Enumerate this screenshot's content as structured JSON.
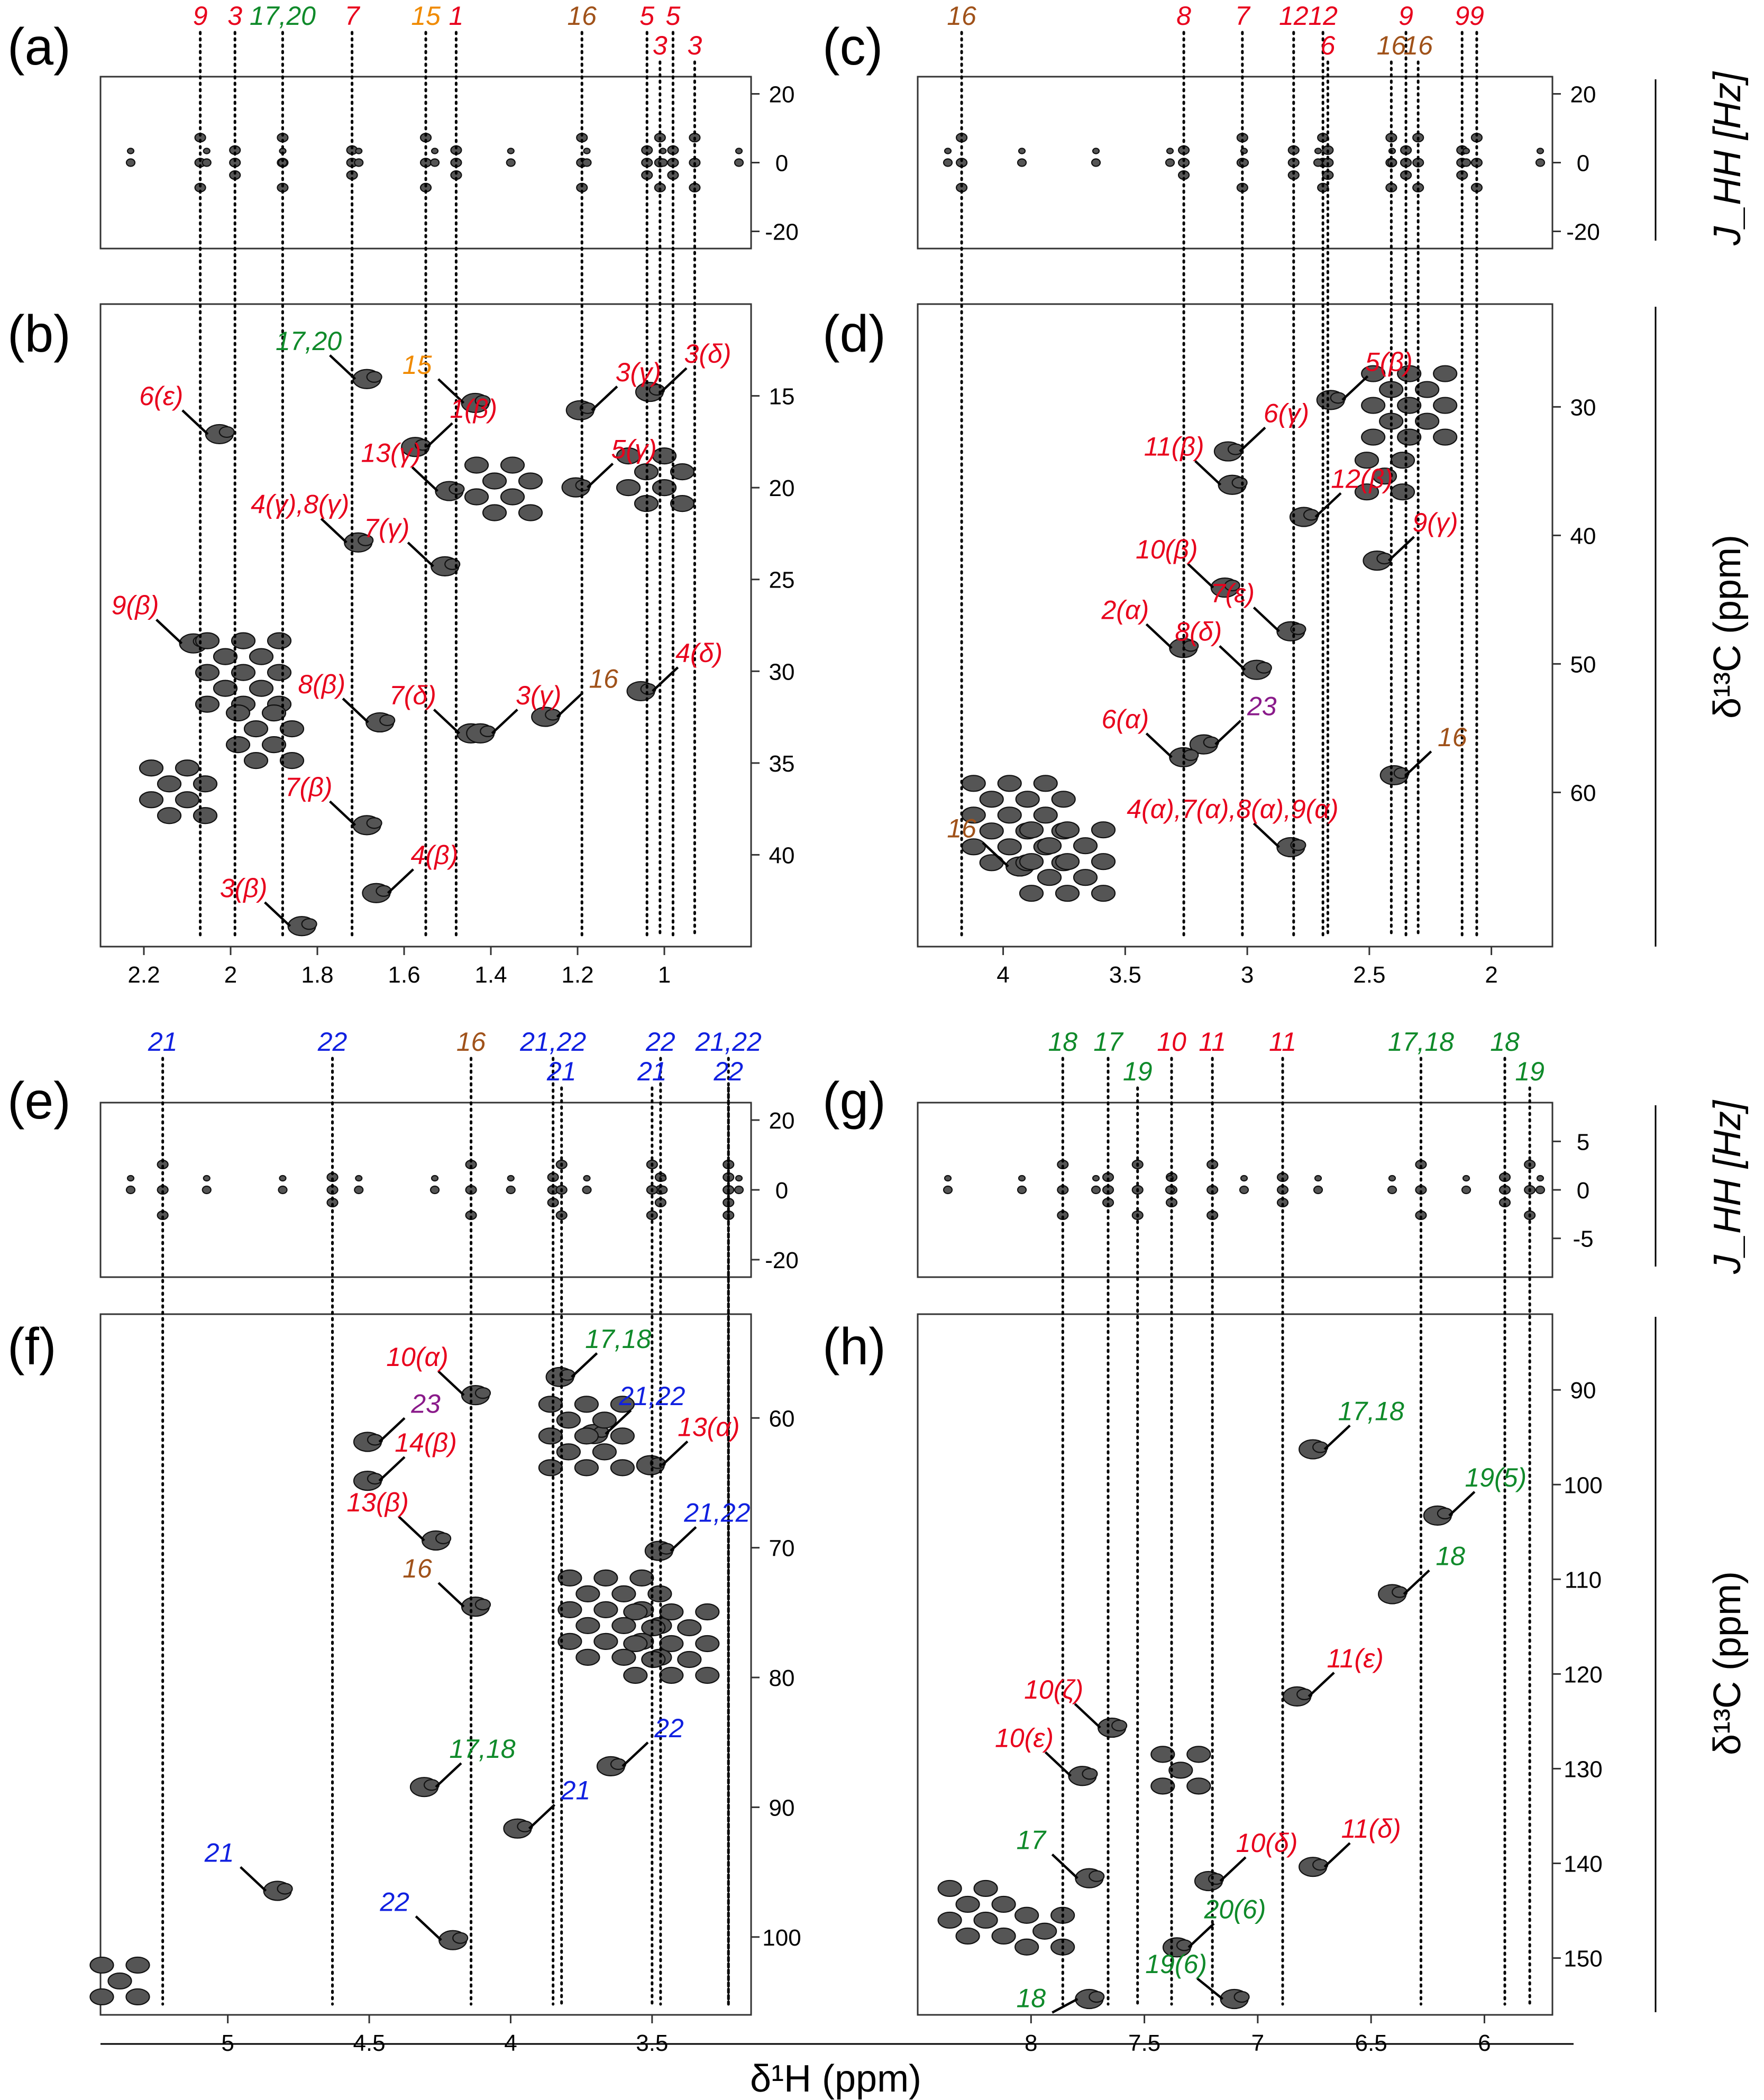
{
  "figure": {
    "bottom_xlabel": "δ¹H (ppm)",
    "right_ylabel_j": "J_HH [Hz]",
    "right_ylabel_c": "δ¹³C (ppm)"
  },
  "colors": {
    "red": "#e8001c",
    "green": "#0f8a2a",
    "blue": "#1020e0",
    "orange": "#f08a00",
    "brown": "#a0521a",
    "purple": "#8a1a8a"
  },
  "chart_data": [
    {
      "panel": "a",
      "type": "scatter",
      "x_scale": "reversed",
      "xlim": [
        2.3,
        0.8
      ],
      "ylim": [
        25,
        -25
      ],
      "yticks": [
        -20,
        0,
        20
      ],
      "peak_labels": [
        {
          "text": "9",
          "x": 2.07,
          "color": "red"
        },
        {
          "text": "3",
          "x": 1.99,
          "color": "red"
        },
        {
          "text": "17,20",
          "x": 1.88,
          "color": "green"
        },
        {
          "text": "7",
          "x": 1.72,
          "color": "red"
        },
        {
          "text": "15",
          "x": 1.55,
          "color": "orange"
        },
        {
          "text": "1",
          "x": 1.48,
          "color": "red"
        },
        {
          "text": "16",
          "x": 1.19,
          "color": "brown"
        },
        {
          "text": "5",
          "x": 1.04,
          "color": "red"
        },
        {
          "text": "3",
          "x": 1.01,
          "color": "red",
          "low": true
        },
        {
          "text": "5",
          "x": 0.98,
          "color": "red"
        },
        {
          "text": "3",
          "x": 0.93,
          "color": "red",
          "low": true
        }
      ]
    },
    {
      "panel": "b",
      "type": "scatter",
      "x_scale": "reversed",
      "xlim": [
        2.3,
        0.8
      ],
      "ylim": [
        10,
        45
      ],
      "xticks": [
        2.2,
        2.0,
        1.8,
        1.6,
        1.4,
        1.2,
        1.0
      ],
      "yticks": [
        15,
        20,
        25,
        30,
        35,
        40
      ],
      "annotations": [
        {
          "text": "6(ε)",
          "color": "red",
          "x": 2.16,
          "y": 15.5
        },
        {
          "text": "17,20",
          "color": "green",
          "x": 1.82,
          "y": 12.5
        },
        {
          "text": "15",
          "color": "orange",
          "x": 1.57,
          "y": 13.8
        },
        {
          "text": "1(β)",
          "color": "red",
          "x": 1.44,
          "y": 16.2
        },
        {
          "text": "13(γ)",
          "color": "red",
          "x": 1.63,
          "y": 18.6
        },
        {
          "text": "3(γ)",
          "color": "red",
          "x": 1.06,
          "y": 14.2
        },
        {
          "text": "3(δ)",
          "color": "red",
          "x": 0.9,
          "y": 13.2
        },
        {
          "text": "5(γ)",
          "color": "red",
          "x": 1.07,
          "y": 18.4
        },
        {
          "text": "4(γ),8(γ)",
          "color": "red",
          "x": 1.84,
          "y": 21.4
        },
        {
          "text": "7(γ)",
          "color": "red",
          "x": 1.64,
          "y": 22.7
        },
        {
          "text": "9(β)",
          "color": "red",
          "x": 2.22,
          "y": 26.9
        },
        {
          "text": "8(β)",
          "color": "red",
          "x": 1.79,
          "y": 31.2
        },
        {
          "text": "7(δ)",
          "color": "red",
          "x": 1.58,
          "y": 31.8
        },
        {
          "text": "3(γ)",
          "color": "red",
          "x": 1.29,
          "y": 31.8
        },
        {
          "text": "16",
          "color": "brown",
          "x": 1.14,
          "y": 30.9
        },
        {
          "text": "4(δ)",
          "color": "red",
          "x": 0.92,
          "y": 29.5
        },
        {
          "text": "7(β)",
          "color": "red",
          "x": 1.82,
          "y": 36.8
        },
        {
          "text": "4(β)",
          "color": "red",
          "x": 1.53,
          "y": 40.5
        },
        {
          "text": "3(β)",
          "color": "red",
          "x": 1.97,
          "y": 42.3
        }
      ]
    },
    {
      "panel": "c",
      "type": "scatter",
      "x_scale": "reversed",
      "xlim": [
        4.35,
        1.75
      ],
      "ylim": [
        25,
        -25
      ],
      "yticks": [
        -20,
        0,
        20
      ],
      "peak_labels": [
        {
          "text": "16",
          "x": 4.17,
          "color": "brown"
        },
        {
          "text": "8",
          "x": 3.26,
          "color": "red"
        },
        {
          "text": "7",
          "x": 3.02,
          "color": "red"
        },
        {
          "text": "12",
          "x": 2.81,
          "color": "red"
        },
        {
          "text": "12",
          "x": 2.69,
          "color": "red"
        },
        {
          "text": "6",
          "x": 2.67,
          "color": "red",
          "low": true
        },
        {
          "text": "16",
          "x": 2.41,
          "color": "brown",
          "low": true
        },
        {
          "text": "9",
          "x": 2.35,
          "color": "red"
        },
        {
          "text": "16",
          "x": 2.3,
          "color": "brown",
          "low": true
        },
        {
          "text": "9",
          "x": 2.12,
          "color": "red"
        },
        {
          "text": "9",
          "x": 2.06,
          "color": "red"
        }
      ]
    },
    {
      "panel": "d",
      "type": "scatter",
      "x_scale": "reversed",
      "xlim": [
        4.35,
        1.75
      ],
      "ylim": [
        22,
        72
      ],
      "xticks": [
        4.0,
        3.5,
        3.0,
        2.5,
        2.0
      ],
      "yticks": [
        30,
        40,
        50,
        60
      ],
      "annotations": [
        {
          "text": "5(β)",
          "color": "red",
          "x": 2.42,
          "y": 27.2
        },
        {
          "text": "6(γ)",
          "color": "red",
          "x": 2.84,
          "y": 31.2
        },
        {
          "text": "11(β)",
          "color": "red",
          "x": 3.3,
          "y": 33.8
        },
        {
          "text": "12(β)",
          "color": "red",
          "x": 2.53,
          "y": 36.3
        },
        {
          "text": "9(γ)",
          "color": "red",
          "x": 2.23,
          "y": 39.7
        },
        {
          "text": "10(β)",
          "color": "red",
          "x": 3.33,
          "y": 41.8
        },
        {
          "text": "7(ε)",
          "color": "red",
          "x": 3.06,
          "y": 45.2
        },
        {
          "text": "2(α)",
          "color": "red",
          "x": 3.5,
          "y": 46.5
        },
        {
          "text": "8(δ)",
          "color": "red",
          "x": 3.2,
          "y": 48.2
        },
        {
          "text": "23",
          "color": "purple",
          "x": 2.94,
          "y": 54.0
        },
        {
          "text": "6(α)",
          "color": "red",
          "x": 3.5,
          "y": 55.0
        },
        {
          "text": "16",
          "color": "brown",
          "x": 2.16,
          "y": 56.4
        },
        {
          "text": "4(α),7(α),8(α),9(α)",
          "color": "red",
          "x": 3.06,
          "y": 62.0
        },
        {
          "text": "16",
          "color": "brown",
          "x": 4.17,
          "y": 63.5
        }
      ]
    },
    {
      "panel": "e",
      "type": "scatter",
      "x_scale": "reversed",
      "xlim": [
        5.45,
        3.15
      ],
      "ylim": [
        25,
        -25
      ],
      "yticks": [
        -20,
        0,
        20
      ],
      "peak_labels": [
        {
          "text": "21",
          "x": 5.23,
          "color": "blue"
        },
        {
          "text": "22",
          "x": 4.63,
          "color": "blue"
        },
        {
          "text": "16",
          "x": 4.14,
          "color": "brown"
        },
        {
          "text": "21,22",
          "x": 3.85,
          "color": "blue"
        },
        {
          "text": "21",
          "x": 3.82,
          "color": "blue",
          "low": true
        },
        {
          "text": "22",
          "x": 3.47,
          "color": "blue"
        },
        {
          "text": "21",
          "x": 3.5,
          "color": "blue",
          "low": true
        },
        {
          "text": "21,22",
          "x": 3.23,
          "color": "blue"
        },
        {
          "text": "22",
          "x": 3.23,
          "color": "blue",
          "low": true
        }
      ]
    },
    {
      "panel": "f",
      "type": "scatter",
      "x_scale": "reversed",
      "xlim": [
        5.45,
        3.15
      ],
      "ylim": [
        52,
        106
      ],
      "xticks": [
        5.0,
        4.5,
        4.0,
        3.5
      ],
      "yticks": [
        60,
        70,
        80,
        90,
        100
      ],
      "annotations": [
        {
          "text": "10(α)",
          "color": "red",
          "x": 4.33,
          "y": 56.0
        },
        {
          "text": "17,18",
          "color": "green",
          "x": 3.62,
          "y": 54.6
        },
        {
          "text": "23",
          "color": "purple",
          "x": 4.3,
          "y": 59.6
        },
        {
          "text": "21,22",
          "color": "blue",
          "x": 3.5,
          "y": 59.0
        },
        {
          "text": "14(β)",
          "color": "red",
          "x": 4.3,
          "y": 62.6
        },
        {
          "text": "13(α)",
          "color": "red",
          "x": 3.3,
          "y": 61.4
        },
        {
          "text": "13(β)",
          "color": "red",
          "x": 4.47,
          "y": 67.2
        },
        {
          "text": "21,22",
          "color": "blue",
          "x": 3.27,
          "y": 68.0
        },
        {
          "text": "16",
          "color": "brown",
          "x": 4.33,
          "y": 72.3
        },
        {
          "text": "22",
          "color": "blue",
          "x": 3.44,
          "y": 84.6
        },
        {
          "text": "17,18",
          "color": "green",
          "x": 4.1,
          "y": 86.2
        },
        {
          "text": "21",
          "color": "blue",
          "x": 3.77,
          "y": 89.4
        },
        {
          "text": "21",
          "color": "blue",
          "x": 5.03,
          "y": 94.2
        },
        {
          "text": "22",
          "color": "blue",
          "x": 4.41,
          "y": 98.0
        }
      ]
    },
    {
      "panel": "g",
      "type": "scatter",
      "x_scale": "reversed",
      "xlim": [
        8.5,
        5.7
      ],
      "ylim": [
        9,
        -9
      ],
      "yticks": [
        -5,
        0,
        5
      ],
      "peak_labels": [
        {
          "text": "18",
          "x": 7.86,
          "color": "green"
        },
        {
          "text": "17",
          "x": 7.66,
          "color": "green"
        },
        {
          "text": "19",
          "x": 7.53,
          "color": "green",
          "low": true
        },
        {
          "text": "10",
          "x": 7.38,
          "color": "red"
        },
        {
          "text": "11",
          "x": 7.2,
          "color": "red"
        },
        {
          "text": "11",
          "x": 6.89,
          "color": "red"
        },
        {
          "text": "17,18",
          "x": 6.28,
          "color": "green"
        },
        {
          "text": "18",
          "x": 5.91,
          "color": "green"
        },
        {
          "text": "19",
          "x": 5.8,
          "color": "green",
          "low": true
        }
      ]
    },
    {
      "panel": "h",
      "type": "scatter",
      "x_scale": "reversed",
      "xlim": [
        8.5,
        5.7
      ],
      "ylim": [
        82,
        156
      ],
      "xticks": [
        8.0,
        7.5,
        7.0,
        6.5,
        6.0
      ],
      "yticks": [
        90,
        100,
        110,
        120,
        130,
        140,
        150
      ],
      "annotations": [
        {
          "text": "17,18",
          "color": "green",
          "x": 6.5,
          "y": 93.2
        },
        {
          "text": "19(5)",
          "color": "green",
          "x": 5.95,
          "y": 100.2
        },
        {
          "text": "18",
          "color": "green",
          "x": 6.15,
          "y": 108.5
        },
        {
          "text": "11(ε)",
          "color": "red",
          "x": 6.57,
          "y": 119.3
        },
        {
          "text": "10(ζ)",
          "color": "red",
          "x": 7.9,
          "y": 122.6
        },
        {
          "text": "10(ε)",
          "color": "red",
          "x": 8.03,
          "y": 127.7
        },
        {
          "text": "11(δ)",
          "color": "red",
          "x": 6.5,
          "y": 137.3
        },
        {
          "text": "10(δ)",
          "color": "red",
          "x": 6.96,
          "y": 138.8
        },
        {
          "text": "17",
          "color": "green",
          "x": 8.0,
          "y": 138.5
        },
        {
          "text": "20(6)",
          "color": "green",
          "x": 7.1,
          "y": 145.8
        },
        {
          "text": "19(6)",
          "color": "green",
          "x": 7.36,
          "y": 151.6
        },
        {
          "text": "18",
          "color": "green",
          "x": 8.0,
          "y": 155.2
        }
      ]
    }
  ]
}
